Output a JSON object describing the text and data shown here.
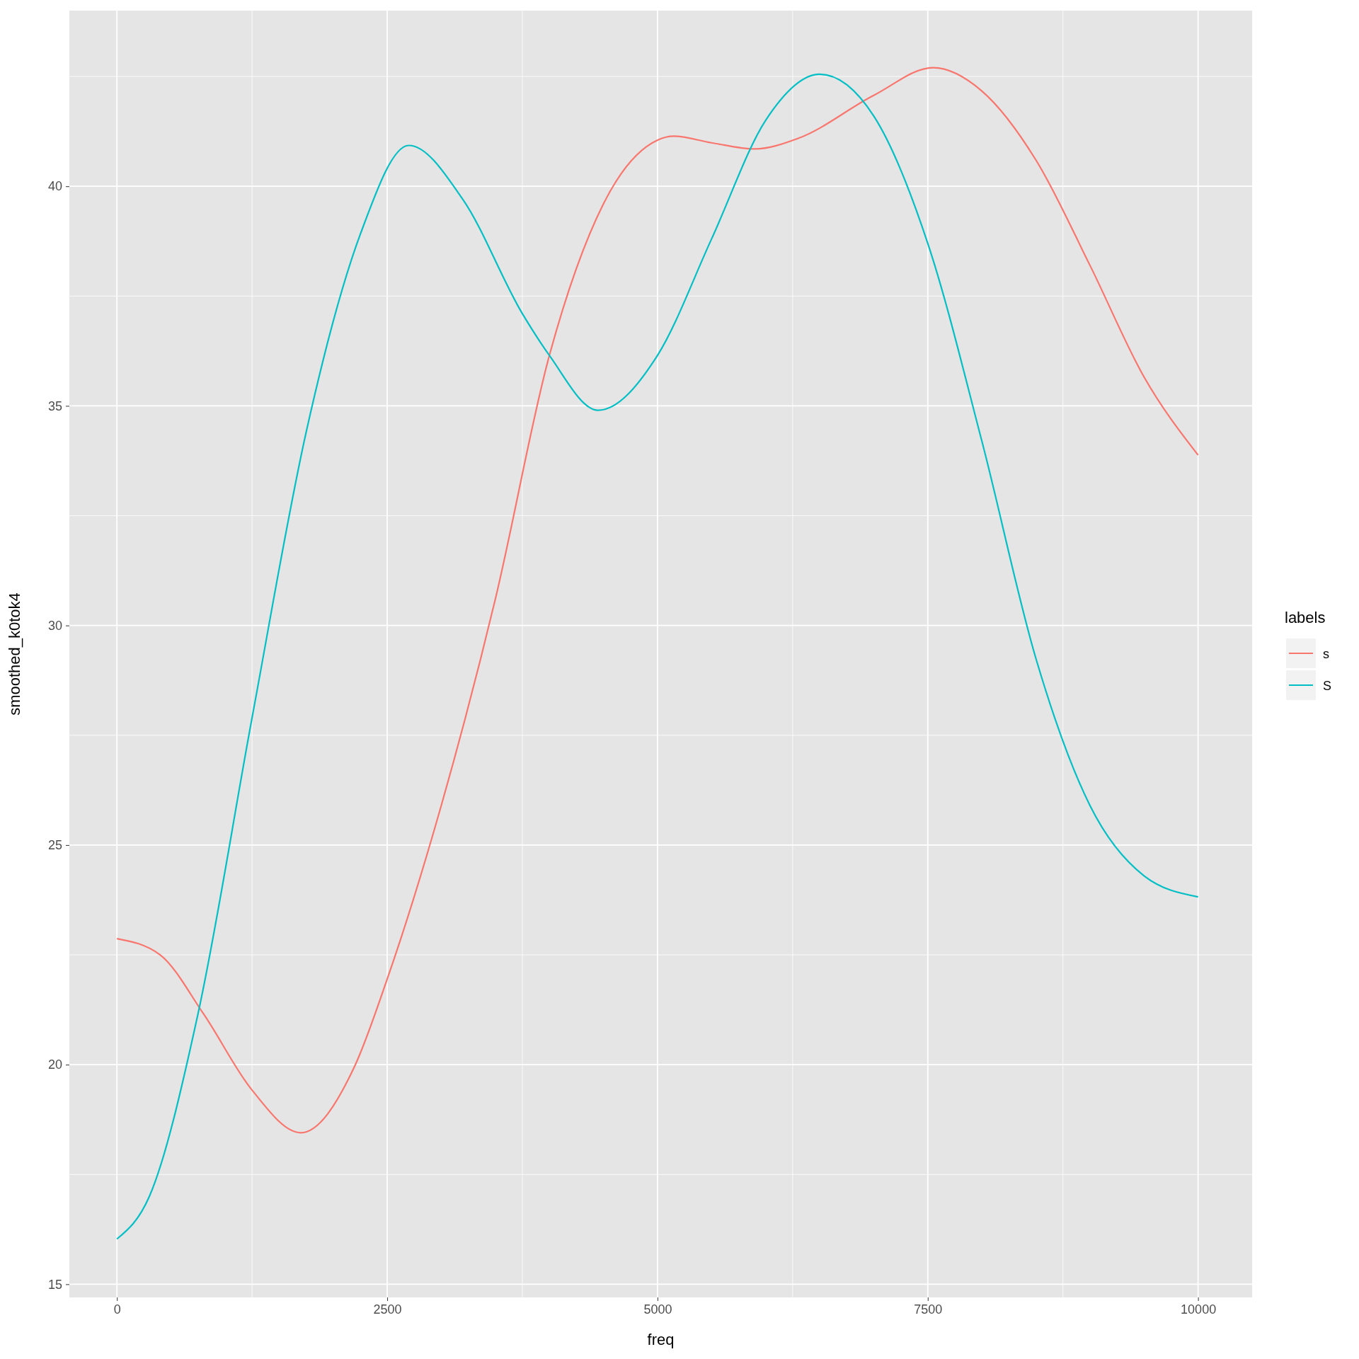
{
  "chart_data": {
    "type": "line",
    "xlabel": "freq",
    "ylabel": "smoothed_k0tok4",
    "legend_title": "labels",
    "xlim": [
      -440,
      10500
    ],
    "ylim": [
      14.7,
      44
    ],
    "xticks": [
      0,
      2500,
      5000,
      7500,
      10000
    ],
    "yticks": [
      15,
      20,
      25,
      30,
      35,
      40
    ],
    "grid": true,
    "legend": "right",
    "marker": "none",
    "line_style": "solid",
    "series": [
      {
        "name": "s",
        "color": "#f8766d",
        "x": [
          0,
          400,
          800,
          1250,
          1700,
          2200,
          2500,
          3000,
          3500,
          4000,
          4500,
          5000,
          5150,
          5500,
          5900,
          6300,
          7000,
          7550,
          8000,
          8500,
          9000,
          9500,
          10000
        ],
        "values": [
          22.87,
          22.5,
          21.16,
          19.42,
          18.45,
          19.97,
          21.95,
          25.9,
          30.6,
          36.15,
          39.6,
          41.05,
          41.14,
          40.99,
          40.85,
          41.09,
          42.07,
          42.7,
          42.17,
          40.6,
          38.2,
          35.66,
          33.88
        ]
      },
      {
        "name": "S",
        "color": "#00bfc4",
        "x": [
          0,
          300,
          750,
          1250,
          1750,
          2250,
          2700,
          3200,
          3750,
          4000,
          4450,
          5000,
          5500,
          6000,
          6500,
          7000,
          7500,
          8000,
          8500,
          9000,
          9500,
          10000
        ],
        "values": [
          16.03,
          17.0,
          21.16,
          27.9,
          34.4,
          38.9,
          40.93,
          39.7,
          37.1,
          36.15,
          34.9,
          36.15,
          38.8,
          41.5,
          42.55,
          41.6,
          38.7,
          34.2,
          29.25,
          25.9,
          24.3,
          23.82
        ]
      }
    ]
  }
}
